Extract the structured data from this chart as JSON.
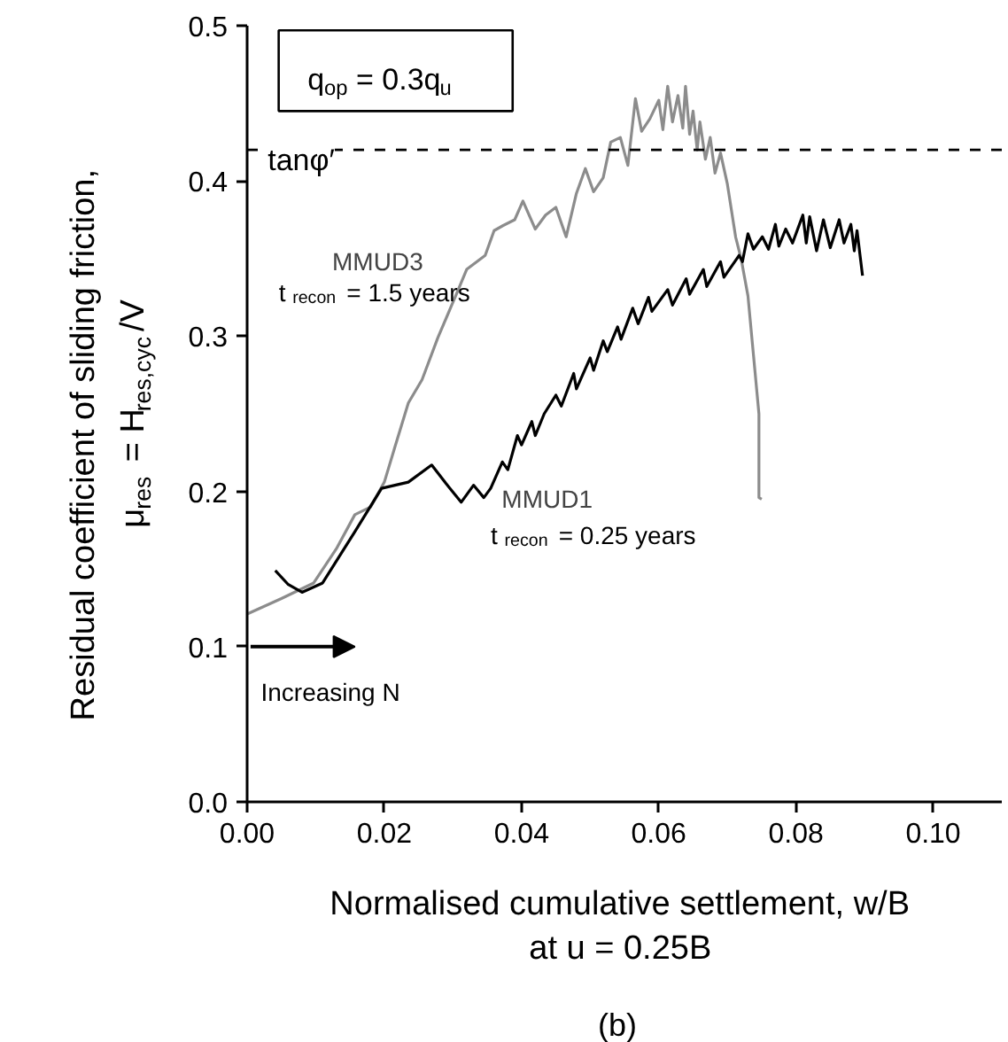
{
  "chart_data": {
    "type": "line",
    "xlabel": "Normalised cumulative settlement, w/B\nat u = 0.25B",
    "ylabel": "Residual coefficient of sliding friction,\nμ$_{res}$ = H$_{res,cyc}$/V",
    "xlim": [
      0,
      0.11
    ],
    "ylim": [
      0,
      0.5
    ],
    "xticks": [
      {
        "value": 0,
        "label": "0.00"
      },
      {
        "value": 0.02,
        "label": "0.02"
      },
      {
        "value": 0.04,
        "label": "0.04"
      },
      {
        "value": 0.06,
        "label": "0.06"
      },
      {
        "value": 0.08,
        "label": "0.08"
      },
      {
        "value": 0.1,
        "label": "0.10"
      }
    ],
    "yticks": [
      {
        "value": 0,
        "label": "0.0"
      },
      {
        "value": 0.1,
        "label": "0.1"
      },
      {
        "value": 0.2,
        "label": "0.2"
      },
      {
        "value": 0.3,
        "label": "0.3"
      },
      {
        "value": 0.4,
        "label": "0.4"
      },
      {
        "value": 0.5,
        "label": "0.5"
      }
    ],
    "grid": false,
    "legend": false,
    "marker": "none",
    "line_style": "solid",
    "ref_lines": [
      {
        "axis": "y",
        "value": 0.42,
        "label": "tanφ′",
        "color": "#000000",
        "line_style": "dashed"
      }
    ],
    "annotations": [
      "q$_{op}$ = 0.3q$_{u}$",
      "t$_{recon}$ = 1.5 years",
      "t$_{recon}$ = 0.25 years",
      "Increasing N",
      "(b)"
    ],
    "series": [
      {
        "name": "MMUD3",
        "color": "#8c8c8c",
        "x": [
          0,
          0.005,
          0.0097,
          0.013,
          0.0157,
          0.018,
          0.02,
          0.0215,
          0.0235,
          0.0255,
          0.0278,
          0.0304,
          0.032,
          0.0347,
          0.036,
          0.0372,
          0.039,
          0.0402,
          0.042,
          0.0435,
          0.045,
          0.0465,
          0.048,
          0.0493,
          0.0505,
          0.0519,
          0.053,
          0.0544,
          0.0555,
          0.0566,
          0.0575,
          0.0587,
          0.06,
          0.0606,
          0.0613,
          0.062,
          0.0628,
          0.0635,
          0.0639,
          0.0645,
          0.065,
          0.0656,
          0.066,
          0.0668,
          0.0675,
          0.0682,
          0.069,
          0.07,
          0.0712,
          0.072,
          0.073,
          0.0738,
          0.0746,
          0.0746,
          0.075
        ],
        "values": [
          0.121,
          0.131,
          0.141,
          0.163,
          0.185,
          0.19,
          0.206,
          0.228,
          0.257,
          0.272,
          0.299,
          0.326,
          0.343,
          0.352,
          0.368,
          0.371,
          0.375,
          0.387,
          0.369,
          0.378,
          0.383,
          0.364,
          0.392,
          0.408,
          0.393,
          0.402,
          0.425,
          0.428,
          0.41,
          0.453,
          0.432,
          0.44,
          0.452,
          0.433,
          0.461,
          0.438,
          0.455,
          0.434,
          0.461,
          0.43,
          0.445,
          0.42,
          0.438,
          0.414,
          0.428,
          0.405,
          0.418,
          0.398,
          0.364,
          0.35,
          0.326,
          0.288,
          0.25,
          0.196,
          0.195
        ]
      },
      {
        "name": "MMUD1",
        "color": "#000000",
        "x": [
          0.0041,
          0.006,
          0.008,
          0.011,
          0.0157,
          0.0196,
          0.0235,
          0.0269,
          0.029,
          0.0312,
          0.033,
          0.0345,
          0.0355,
          0.0372,
          0.038,
          0.0394,
          0.04,
          0.0415,
          0.042,
          0.0433,
          0.045,
          0.0458,
          0.0476,
          0.048,
          0.05,
          0.0505,
          0.0519,
          0.0525,
          0.054,
          0.0545,
          0.0562,
          0.057,
          0.0585,
          0.059,
          0.0613,
          0.062,
          0.064,
          0.0645,
          0.0665,
          0.067,
          0.069,
          0.0695,
          0.0717,
          0.0722,
          0.073,
          0.0738,
          0.0751,
          0.076,
          0.077,
          0.0775,
          0.0785,
          0.0795,
          0.081,
          0.0815,
          0.082,
          0.083,
          0.084,
          0.085,
          0.0863,
          0.087,
          0.088,
          0.0885,
          0.0889,
          0.0897
        ],
        "values": [
          0.149,
          0.14,
          0.135,
          0.141,
          0.174,
          0.202,
          0.206,
          0.217,
          0.205,
          0.193,
          0.204,
          0.196,
          0.202,
          0.219,
          0.214,
          0.236,
          0.23,
          0.245,
          0.236,
          0.25,
          0.262,
          0.255,
          0.276,
          0.266,
          0.286,
          0.278,
          0.297,
          0.29,
          0.306,
          0.298,
          0.318,
          0.308,
          0.325,
          0.316,
          0.33,
          0.32,
          0.337,
          0.327,
          0.343,
          0.332,
          0.348,
          0.338,
          0.352,
          0.348,
          0.366,
          0.356,
          0.364,
          0.356,
          0.372,
          0.358,
          0.369,
          0.36,
          0.378,
          0.36,
          0.377,
          0.355,
          0.375,
          0.357,
          0.375,
          0.36,
          0.372,
          0.355,
          0.368,
          0.339
        ]
      }
    ]
  }
}
